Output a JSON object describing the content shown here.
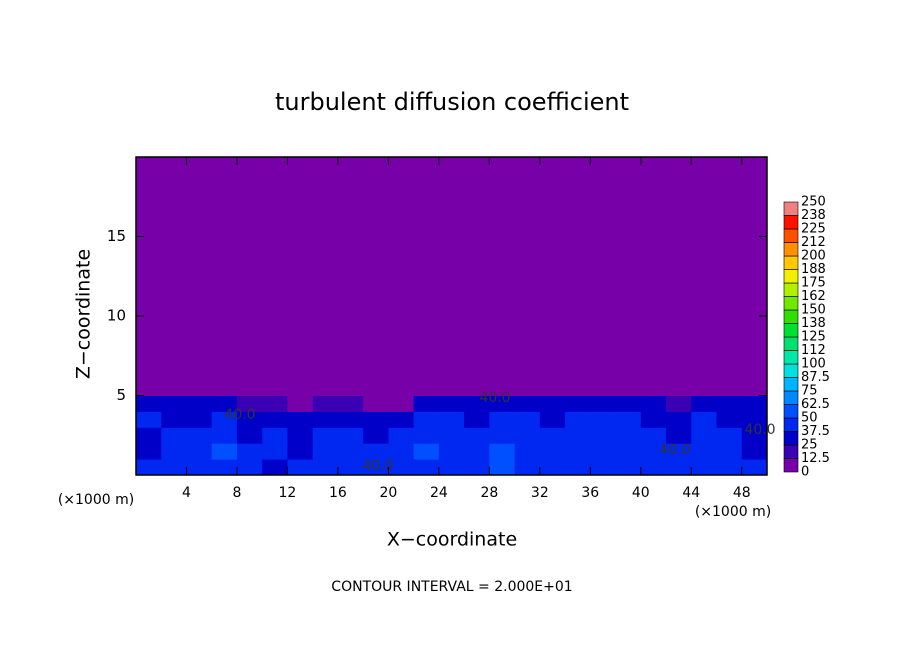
{
  "chart_data": {
    "type": "heatmap",
    "title": "turbulent diffusion coefficient",
    "x_label": "X−coordinate",
    "y_label": "Z−coordinate",
    "x_unit": "(×1000 m)",
    "x_unit_right": "(×1000 m)",
    "footer": "CONTOUR INTERVAL = 2.000E+01",
    "contour_labels": [
      "40.0",
      "40.0",
      "40.0",
      "40.0",
      "40.0"
    ],
    "xlim": [
      0,
      50
    ],
    "xticks": [
      4,
      8,
      12,
      16,
      20,
      24,
      28,
      32,
      36,
      40,
      44,
      48
    ],
    "ylim": [
      0,
      20
    ],
    "yticks": [
      5,
      10,
      15
    ],
    "x_bins": [
      0,
      2,
      4,
      6,
      8,
      10,
      12,
      14,
      16,
      18,
      20,
      22,
      24,
      26,
      28,
      30,
      32,
      34,
      36,
      38,
      40,
      42,
      44,
      46,
      48,
      50
    ],
    "z_bins": [
      0,
      1,
      2,
      3,
      4,
      5,
      6,
      20
    ],
    "z": [
      [
        40,
        38,
        42,
        45,
        40,
        36,
        44,
        38,
        42,
        40,
        45,
        48,
        40,
        42,
        55,
        40,
        44,
        42,
        40,
        38,
        45,
        42,
        40,
        38,
        42
      ],
      [
        35,
        40,
        45,
        50,
        38,
        42,
        36,
        40,
        45,
        38,
        42,
        50,
        45,
        40,
        52,
        46,
        40,
        48,
        42,
        45,
        40,
        38,
        44,
        40,
        36
      ],
      [
        30,
        42,
        40,
        48,
        35,
        40,
        32,
        38,
        40,
        35,
        40,
        45,
        42,
        38,
        48,
        44,
        38,
        45,
        40,
        42,
        38,
        35,
        40,
        38,
        34
      ],
      [
        38,
        30,
        35,
        45,
        32,
        30,
        28,
        35,
        36,
        30,
        30,
        38,
        40,
        35,
        42,
        40,
        35,
        40,
        38,
        40,
        35,
        30,
        38,
        36,
        32
      ],
      [
        32,
        25,
        28,
        36,
        20,
        24,
        10,
        18,
        20,
        8,
        12,
        25,
        30,
        28,
        35,
        30,
        28,
        30,
        32,
        35,
        28,
        20,
        30,
        32,
        30
      ],
      [
        5,
        4,
        10,
        8,
        6,
        5,
        4,
        5,
        4,
        4,
        5,
        6,
        5,
        12,
        10,
        8,
        6,
        5,
        8,
        10,
        6,
        5,
        10,
        8,
        12
      ],
      [
        0,
        0,
        0,
        0,
        0,
        0,
        0,
        0,
        0,
        0,
        0,
        0,
        0,
        0,
        0,
        0,
        0,
        0,
        0,
        0,
        0,
        0,
        0,
        0,
        0
      ]
    ],
    "colorbar": {
      "levels": [
        0,
        12.5,
        25,
        37.5,
        50,
        62.5,
        75,
        87.5,
        100,
        {
          "value": 112.5,
          "label": "112"
        },
        125,
        {
          "value": 137.5,
          "label": "138"
        },
        150,
        {
          "value": 162.5,
          "label": "162"
        },
        175,
        {
          "value": 187.5,
          "label": "188"
        },
        200,
        {
          "value": 212.5,
          "label": "212"
        },
        225,
        {
          "value": 237.5,
          "label": "238"
        },
        250
      ],
      "colors": [
        "#7800a8",
        "#3c00b4",
        "#0000c8",
        "#0028f0",
        "#0050ff",
        "#0088ff",
        "#00b4ff",
        "#00e0e0",
        "#00e8a8",
        "#00e070",
        "#00e030",
        "#30e000",
        "#70e800",
        "#b0f000",
        "#f0f000",
        "#ffc800",
        "#ff9000",
        "#ff5000",
        "#ff1000",
        "#f08080"
      ]
    }
  }
}
